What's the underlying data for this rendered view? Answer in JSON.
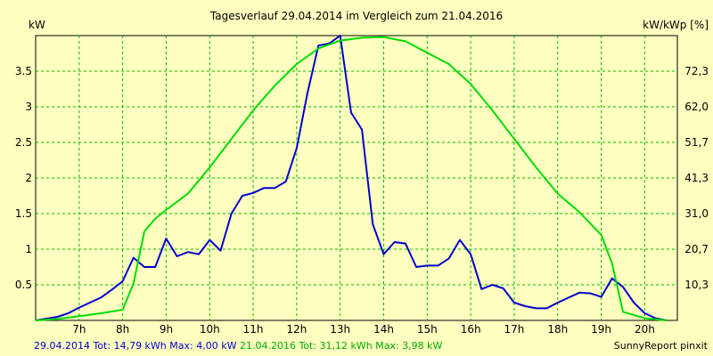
{
  "chart_data": {
    "type": "line",
    "title": "Tagesverlauf 29.04.2014 im Vergleich zum 21.04.2016",
    "ylabel_left": "kW",
    "ylabel_right": "kW/kWp [%]",
    "x_range": [
      6.0,
      20.75
    ],
    "ylim": [
      0,
      4.0
    ],
    "grid": true,
    "x_ticks": [
      {
        "x": 7,
        "label": "7h"
      },
      {
        "x": 8,
        "label": "8h"
      },
      {
        "x": 9,
        "label": "9h"
      },
      {
        "x": 10,
        "label": "10h"
      },
      {
        "x": 11,
        "label": "11h"
      },
      {
        "x": 12,
        "label": "12h"
      },
      {
        "x": 13,
        "label": "13h"
      },
      {
        "x": 14,
        "label": "14h"
      },
      {
        "x": 15,
        "label": "15h"
      },
      {
        "x": 16,
        "label": "16h"
      },
      {
        "x": 17,
        "label": "17h"
      },
      {
        "x": 18,
        "label": "18h"
      },
      {
        "x": 19,
        "label": "19h"
      },
      {
        "x": 20,
        "label": "20h"
      }
    ],
    "y_ticks_left": [
      {
        "y": 0.5,
        "label": "0.5"
      },
      {
        "y": 1.0,
        "label": "1"
      },
      {
        "y": 1.5,
        "label": "1.5"
      },
      {
        "y": 2.0,
        "label": "2"
      },
      {
        "y": 2.5,
        "label": "2.5"
      },
      {
        "y": 3.0,
        "label": "3"
      },
      {
        "y": 3.5,
        "label": "3.5"
      }
    ],
    "y_ticks_right": [
      {
        "y": 0.5,
        "label": "10,3"
      },
      {
        "y": 1.0,
        "label": "20,7"
      },
      {
        "y": 1.5,
        "label": "31,0"
      },
      {
        "y": 2.0,
        "label": "41,3"
      },
      {
        "y": 2.5,
        "label": "51,7"
      },
      {
        "y": 3.0,
        "label": "62,0"
      },
      {
        "y": 3.5,
        "label": "72,3"
      }
    ],
    "series": [
      {
        "name": "29.04.2014",
        "color": "#0000cc",
        "points": [
          [
            6.0,
            0.0
          ],
          [
            6.5,
            0.05
          ],
          [
            6.75,
            0.1
          ],
          [
            7.0,
            0.18
          ],
          [
            7.25,
            0.25
          ],
          [
            7.5,
            0.32
          ],
          [
            7.75,
            0.43
          ],
          [
            8.0,
            0.55
          ],
          [
            8.25,
            0.88
          ],
          [
            8.5,
            0.75
          ],
          [
            8.75,
            0.75
          ],
          [
            9.0,
            1.15
          ],
          [
            9.25,
            0.9
          ],
          [
            9.5,
            0.96
          ],
          [
            9.75,
            0.93
          ],
          [
            10.0,
            1.13
          ],
          [
            10.25,
            0.98
          ],
          [
            10.5,
            1.5
          ],
          [
            10.75,
            1.75
          ],
          [
            11.0,
            1.79
          ],
          [
            11.25,
            1.86
          ],
          [
            11.5,
            1.86
          ],
          [
            11.75,
            1.95
          ],
          [
            12.0,
            2.42
          ],
          [
            12.25,
            3.2
          ],
          [
            12.5,
            3.86
          ],
          [
            12.75,
            3.89
          ],
          [
            13.0,
            4.0
          ],
          [
            13.25,
            2.92
          ],
          [
            13.5,
            2.68
          ],
          [
            13.75,
            1.35
          ],
          [
            14.0,
            0.93
          ],
          [
            14.25,
            1.1
          ],
          [
            14.5,
            1.08
          ],
          [
            14.75,
            0.75
          ],
          [
            15.0,
            0.77
          ],
          [
            15.25,
            0.77
          ],
          [
            15.5,
            0.87
          ],
          [
            15.75,
            1.13
          ],
          [
            16.0,
            0.93
          ],
          [
            16.25,
            0.44
          ],
          [
            16.5,
            0.5
          ],
          [
            16.75,
            0.45
          ],
          [
            17.0,
            0.25
          ],
          [
            17.25,
            0.2
          ],
          [
            17.5,
            0.17
          ],
          [
            17.75,
            0.17
          ],
          [
            18.0,
            0.25
          ],
          [
            18.25,
            0.32
          ],
          [
            18.5,
            0.39
          ],
          [
            18.75,
            0.38
          ],
          [
            19.0,
            0.33
          ],
          [
            19.25,
            0.59
          ],
          [
            19.5,
            0.47
          ],
          [
            19.75,
            0.25
          ],
          [
            20.0,
            0.1
          ],
          [
            20.25,
            0.03
          ],
          [
            20.5,
            0.0
          ]
        ]
      },
      {
        "name": "21.04.2016",
        "color": "#00dd00",
        "points": [
          [
            6.0,
            0.0
          ],
          [
            6.5,
            0.02
          ],
          [
            7.0,
            0.06
          ],
          [
            7.5,
            0.1
          ],
          [
            8.0,
            0.15
          ],
          [
            8.25,
            0.52
          ],
          [
            8.5,
            1.25
          ],
          [
            8.75,
            1.43
          ],
          [
            9.0,
            1.55
          ],
          [
            9.5,
            1.78
          ],
          [
            10.0,
            2.15
          ],
          [
            10.5,
            2.55
          ],
          [
            11.0,
            2.95
          ],
          [
            11.5,
            3.3
          ],
          [
            12.0,
            3.6
          ],
          [
            12.5,
            3.82
          ],
          [
            13.0,
            3.93
          ],
          [
            13.5,
            3.97
          ],
          [
            14.0,
            3.98
          ],
          [
            14.5,
            3.92
          ],
          [
            15.0,
            3.76
          ],
          [
            15.5,
            3.6
          ],
          [
            16.0,
            3.32
          ],
          [
            16.5,
            2.95
          ],
          [
            17.0,
            2.55
          ],
          [
            17.5,
            2.15
          ],
          [
            18.0,
            1.78
          ],
          [
            18.5,
            1.52
          ],
          [
            19.0,
            1.2
          ],
          [
            19.25,
            0.8
          ],
          [
            19.5,
            0.12
          ],
          [
            20.0,
            0.03
          ],
          [
            20.5,
            0.0
          ]
        ]
      }
    ]
  },
  "footer": {
    "series1_label": "29.04.2014 Tot: 14,79 kWh Max: 4,00 kW",
    "series2_label": "21.04.2016 Tot: 31,12 kWh Max: 3,98 kW",
    "credit": "SunnyReport pinxit"
  }
}
